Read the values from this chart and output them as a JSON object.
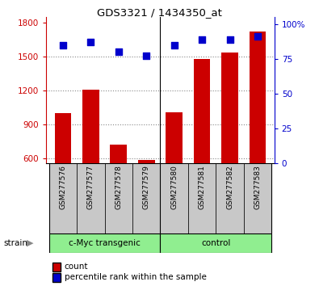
{
  "title": "GDS3321 / 1434350_at",
  "samples": [
    "GSM277576",
    "GSM277577",
    "GSM277578",
    "GSM277579",
    "GSM277580",
    "GSM277581",
    "GSM277582",
    "GSM277583"
  ],
  "counts": [
    1000,
    1210,
    720,
    590,
    1010,
    1480,
    1540,
    1720
  ],
  "percentile_ranks": [
    85,
    87,
    80,
    77,
    85,
    89,
    89,
    91
  ],
  "bar_color": "#CC0000",
  "dot_color": "#0000CC",
  "ylim_left": [
    560,
    1850
  ],
  "ylim_right": [
    0,
    105
  ],
  "yticks_left": [
    600,
    900,
    1200,
    1500,
    1800
  ],
  "yticks_right": [
    0,
    25,
    50,
    75,
    100
  ],
  "left_axis_color": "#CC0000",
  "right_axis_color": "#0000CC",
  "grid_color": "#888888",
  "tick_area_color": "#C8C8C8",
  "group_fill": "#90EE90",
  "legend_items": [
    {
      "label": "count",
      "color": "#CC0000"
    },
    {
      "label": "percentile rank within the sample",
      "color": "#0000CC"
    }
  ]
}
